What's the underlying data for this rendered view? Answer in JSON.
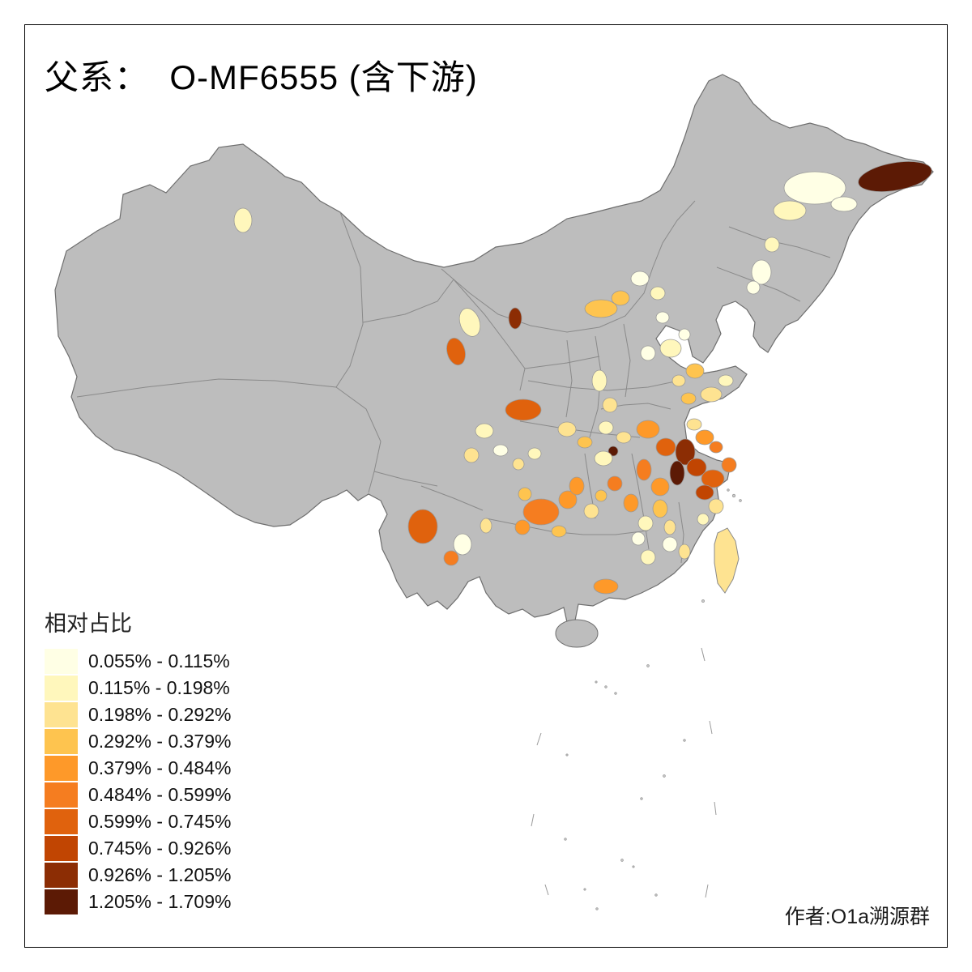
{
  "title": "父系：  O-MF6555 (含下游)",
  "legend": {
    "title": "相对占比",
    "classes": [
      {
        "label": "0.055% - 0.115%",
        "color": "#FFFFE5"
      },
      {
        "label": "0.115% - 0.198%",
        "color": "#FFF7BC"
      },
      {
        "label": "0.198% - 0.292%",
        "color": "#FEE391"
      },
      {
        "label": "0.292% - 0.379%",
        "color": "#FEC44F"
      },
      {
        "label": "0.379% - 0.484%",
        "color": "#FE9929"
      },
      {
        "label": "0.484% - 0.599%",
        "color": "#F57D20"
      },
      {
        "label": "0.599% - 0.745%",
        "color": "#E0620D"
      },
      {
        "label": "0.745% - 0.926%",
        "color": "#C14502"
      },
      {
        "label": "0.926% - 1.205%",
        "color": "#8C2D04"
      },
      {
        "label": "1.205% - 1.709%",
        "color": "#5C1A05"
      }
    ]
  },
  "attribution": "作者:O1a溯源群",
  "map": {
    "subject": "China choropleth of paternal lineage O-MF6555 relative frequency by prefecture",
    "no_data_fill": "#bdbdbd",
    "boundary_color": "#6e6e6e",
    "sea_background": "#ffffff"
  },
  "chart_data": {
    "type": "heatmap",
    "subtype": "choropleth-map",
    "title": "父系：  O-MF6555 (含下游)",
    "legend_title": "相对占比",
    "bins": [
      "0.055% - 0.115%",
      "0.115% - 0.198%",
      "0.198% - 0.292%",
      "0.292% - 0.379%",
      "0.379% - 0.484%",
      "0.484% - 0.599%",
      "0.599% - 0.745%",
      "0.745% - 0.926%",
      "0.926% - 1.205%",
      "1.205% - 1.709%"
    ],
    "legend_position": "bottom-left",
    "annotation": "作者:O1a溯源群"
  }
}
